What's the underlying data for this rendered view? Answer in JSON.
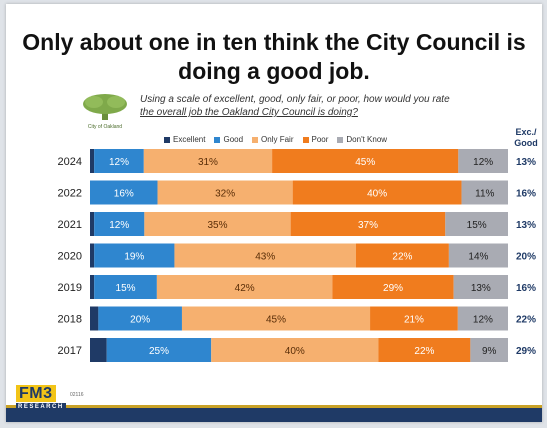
{
  "title_line1": "Only about one in ten think the City Council is",
  "title_line2": "doing a good job.",
  "question_line1": "Using a scale of excellent, good, only fair, or poor, how would you rate",
  "question_line2": "the overall job the Oakland City Council is doing?",
  "logo_caption": "City of Oakland",
  "exc_header_line1": "Exc./",
  "exc_header_line2": "Good",
  "brand": "FM3",
  "brand_sub": "RESEARCH",
  "footer_code": "02116",
  "colors": {
    "Excellent": "#1f3a66",
    "Good": "#2f86cf",
    "Only Fair": "#f6b06f",
    "Poor": "#f07c1e",
    "Don't Know": "#a9abb3",
    "exc_good_text": "#1f3a66"
  },
  "chart_data": {
    "type": "bar",
    "orientation": "horizontal",
    "stacked": true,
    "categories": [
      "2024",
      "2022",
      "2021",
      "2020",
      "2019",
      "2018",
      "2017"
    ],
    "series": [
      {
        "name": "Excellent",
        "values": [
          1,
          0,
          1,
          1,
          1,
          2,
          4
        ]
      },
      {
        "name": "Good",
        "values": [
          12,
          16,
          12,
          19,
          15,
          20,
          25
        ]
      },
      {
        "name": "Only Fair",
        "values": [
          31,
          32,
          35,
          43,
          42,
          45,
          40
        ]
      },
      {
        "name": "Poor",
        "values": [
          45,
          40,
          37,
          22,
          29,
          21,
          22
        ]
      },
      {
        "name": "Don't Know",
        "values": [
          12,
          11,
          15,
          14,
          13,
          12,
          9
        ]
      }
    ],
    "labeled_series": [
      "Good",
      "Only Fair",
      "Poor",
      "Don't Know"
    ],
    "exc_good": [
      "13%",
      "16%",
      "13%",
      "20%",
      "16%",
      "22%",
      "29%"
    ],
    "legend_position": "top",
    "grid": false
  }
}
